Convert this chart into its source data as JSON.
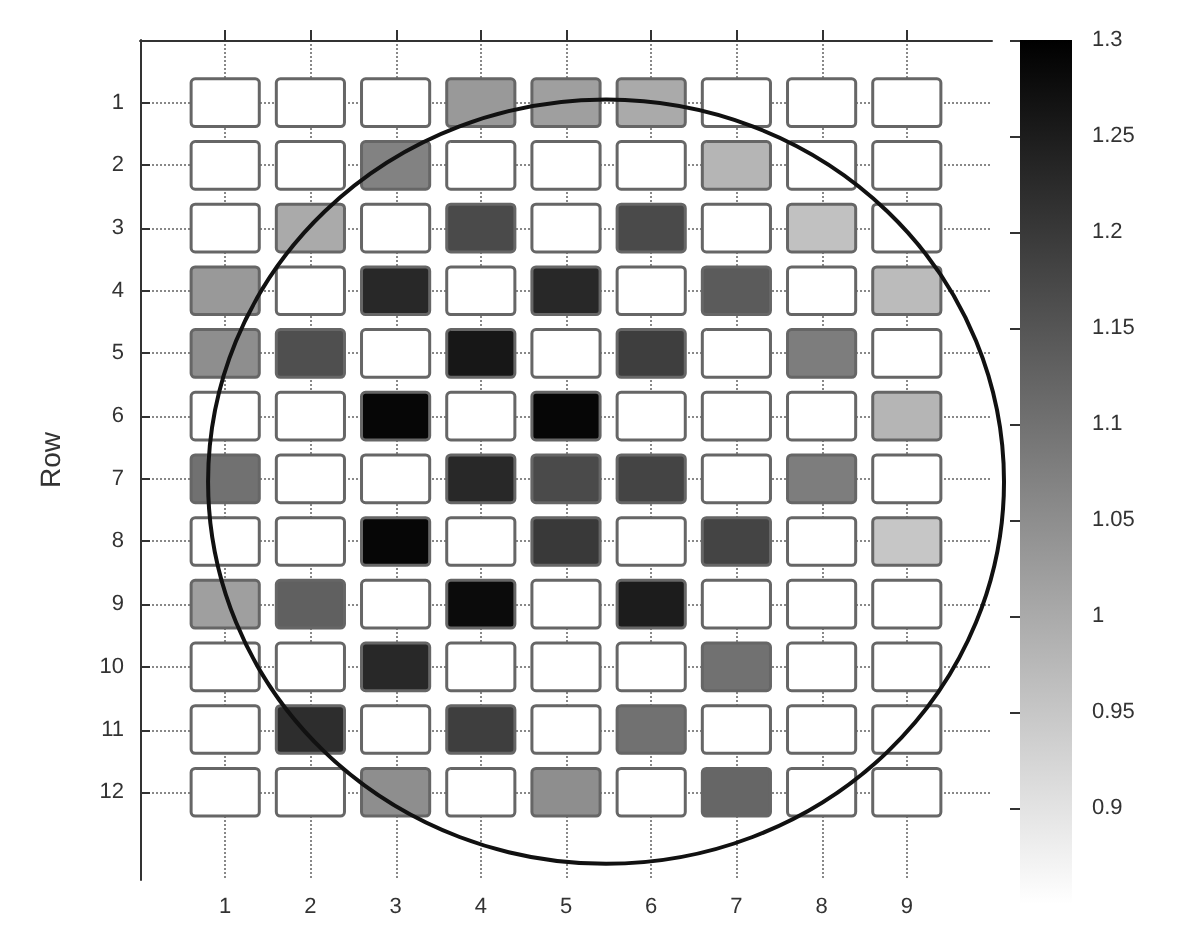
{
  "chart_data": {
    "type": "heatmap",
    "ylabel": "Row",
    "categories": [
      "1",
      "2",
      "3",
      "4",
      "5",
      "6",
      "7",
      "8",
      "9"
    ],
    "y_categories": [
      "1",
      "2",
      "3",
      "4",
      "5",
      "6",
      "7",
      "8",
      "9",
      "10",
      "11",
      "12"
    ],
    "cells": [
      [
        0.85,
        0.85,
        0.85,
        1.03,
        1.02,
        1.0,
        0.85,
        0.85,
        0.85
      ],
      [
        0.85,
        0.85,
        1.07,
        0.85,
        0.85,
        0.85,
        0.98,
        0.85,
        0.85
      ],
      [
        0.85,
        1.0,
        0.85,
        1.17,
        0.85,
        1.17,
        0.85,
        0.96,
        0.85
      ],
      [
        1.03,
        0.85,
        1.23,
        0.85,
        1.23,
        0.85,
        1.14,
        0.85,
        0.97
      ],
      [
        1.05,
        1.16,
        0.85,
        1.26,
        0.85,
        1.19,
        0.85,
        1.08,
        0.85
      ],
      [
        0.85,
        0.85,
        1.29,
        0.85,
        1.29,
        0.85,
        0.85,
        0.85,
        0.98
      ],
      [
        1.1,
        0.85,
        0.85,
        1.23,
        1.17,
        1.18,
        0.85,
        1.08,
        0.85
      ],
      [
        0.85,
        0.85,
        1.29,
        0.85,
        1.2,
        0.85,
        1.18,
        0.85,
        0.95
      ],
      [
        1.02,
        1.13,
        0.85,
        1.28,
        0.85,
        1.25,
        0.85,
        0.85,
        0.85
      ],
      [
        0.85,
        0.85,
        1.23,
        0.85,
        0.85,
        0.85,
        1.1,
        0.85,
        0.85
      ],
      [
        0.85,
        1.22,
        0.85,
        1.19,
        0.85,
        1.1,
        0.85,
        0.85,
        0.85
      ],
      [
        0.85,
        0.85,
        1.05,
        0.85,
        1.05,
        0.85,
        1.12,
        0.85,
        0.85
      ]
    ],
    "clim": [
      0.85,
      1.3
    ],
    "cticks": [
      0.9,
      0.95,
      1,
      1.05,
      1.1,
      1.15,
      1.2,
      1.25,
      1.3
    ],
    "grid": true
  }
}
